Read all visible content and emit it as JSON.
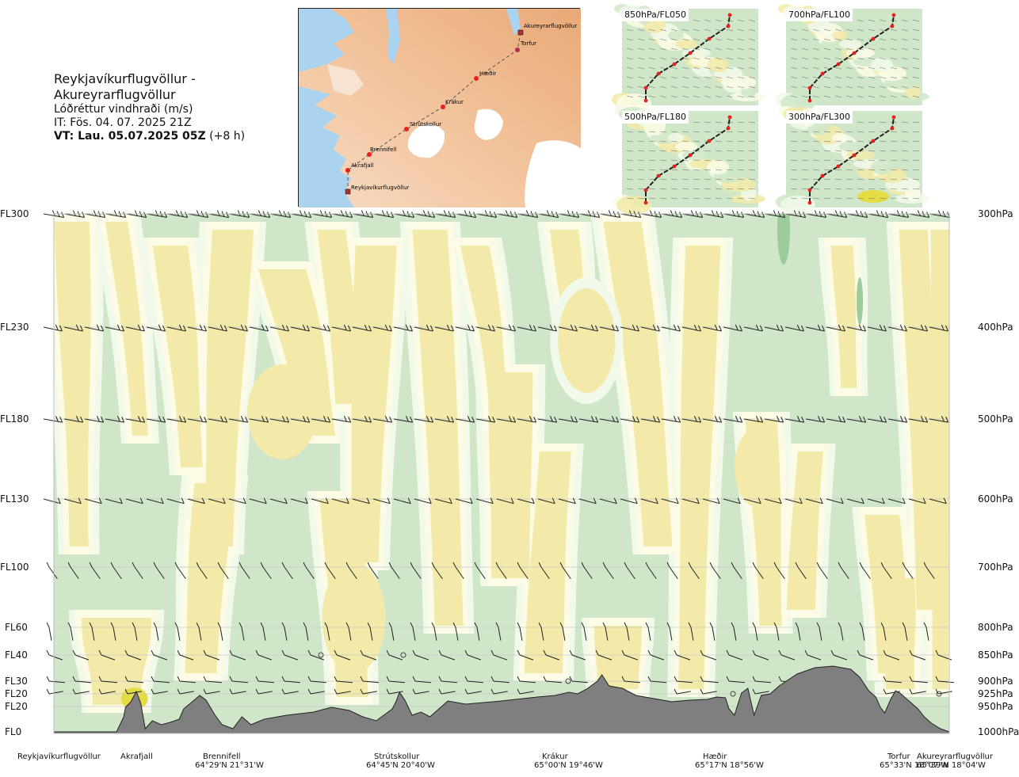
{
  "header": {
    "title": "Reykjavíkurflugvöllur - Akureyrarflugvöllur",
    "subtitle": "Lóðréttur vindhraði (m/s)",
    "issue_time": "IT: Fös. 04. 07. 2025 21Z",
    "valid_time_bold": "VT: Lau. 05.07.2025 05Z",
    "valid_time_rest": " (+8 h)"
  },
  "route_map": {
    "stations": [
      "Akureyrarflugvöllur",
      "Torfur",
      "Hæðir",
      "Krákur",
      "Strútskollur",
      "Brennifell",
      "Akrafjall",
      "Reykjavíkurflugvöllur"
    ]
  },
  "panels": [
    {
      "label": "850hPa/FL050"
    },
    {
      "label": "700hPa/FL100"
    },
    {
      "label": "500hPa/FL180"
    },
    {
      "label": "300hPa/FL300"
    }
  ],
  "chart_data": {
    "type": "heatmap",
    "title": "Reykjavíkurflugvöllur - Akureyrarflugvöllur",
    "quantity": "Lóðréttur vindhraði (m/s)",
    "left_axis": [
      "FL300",
      "FL230",
      "FL180",
      "FL130",
      "FL100",
      "FL60",
      "FL40",
      "FL30",
      "FL20",
      "FL20",
      "FL0"
    ],
    "right_axis": [
      "300hPa",
      "400hPa",
      "500hPa",
      "600hPa",
      "700hPa",
      "800hPa",
      "850hPa",
      "900hPa",
      "925hPa",
      "950hPa",
      "1000hPa"
    ],
    "pressure_levels_hPa": [
      300,
      400,
      500,
      600,
      700,
      800,
      850,
      900,
      925,
      950,
      1000
    ],
    "stations": [
      {
        "name": "Reykjavíkurflugvöllur",
        "coord": "",
        "dist": 0.0
      },
      {
        "name": "Akrafjall",
        "coord": "",
        "dist": 0.092
      },
      {
        "name": "Brennifell",
        "coord": "64°29'N 21°31'W",
        "dist": 0.188
      },
      {
        "name": "Strútskollur",
        "coord": "64°45'N 20°40'W",
        "dist": 0.378
      },
      {
        "name": "Krákur",
        "coord": "65°00'N 19°46'W",
        "dist": 0.573
      },
      {
        "name": "Hæðir",
        "coord": "65°17'N 18°56'W",
        "dist": 0.75
      },
      {
        "name": "Torfur",
        "coord": "65°33'N 18°07'W",
        "dist": 0.946
      },
      {
        "name": "Akureyrarflugvöllur",
        "coord": "65°39'N 18°04'W",
        "dist": 1.0
      }
    ],
    "colors": {
      "downdraft": "#cfe7c8",
      "weak": "#f1f9ea",
      "neutral": "#fcfbe6",
      "updraft": "#f3e9a8",
      "strong_updraft": "#e4dc45",
      "strong_downdraft": "#9ccb9c",
      "terrain": "#7f7f7f"
    }
  }
}
